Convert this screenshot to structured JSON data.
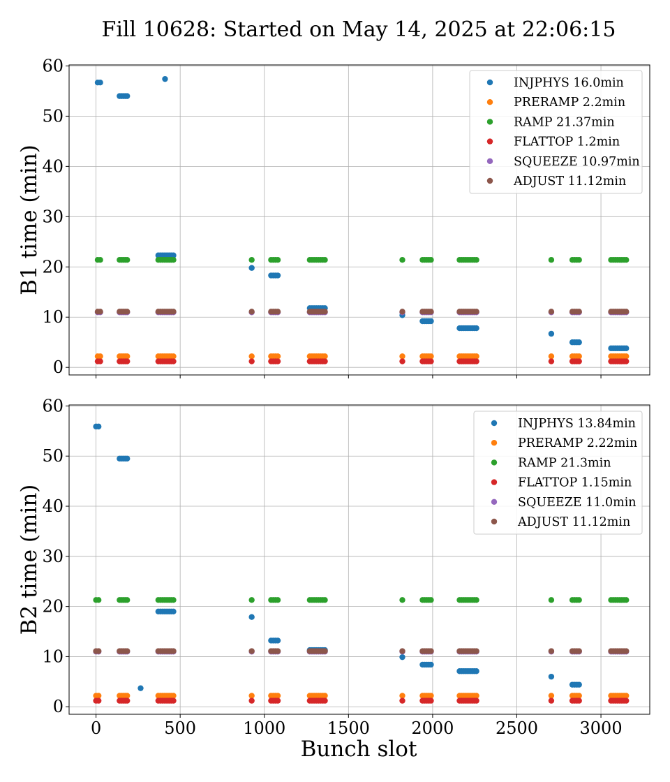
{
  "chart_data": {
    "title": "Fill 10628: Started on May 14, 2025 at 22:06:15",
    "xlabel": "Bunch slot",
    "type": "scatter",
    "grid": true,
    "legend_position": "top-right",
    "x_ticks": [
      0,
      500,
      1000,
      1500,
      2000,
      2500,
      3000
    ],
    "y_ticks": [
      0,
      10,
      20,
      30,
      40,
      50,
      60
    ],
    "xlim": [
      -160,
      3290
    ],
    "colors": {
      "INJPHYS": "#1f77b4",
      "PRERAMP": "#ff7f0e",
      "RAMP": "#2ca02c",
      "FLATTOP": "#d62728",
      "SQUEEZE": "#9467bd",
      "ADJUST": "#8c564b"
    },
    "panels": [
      {
        "ylabel": "B1 time (min)",
        "ylim": [
          -1.5,
          60.2
        ],
        "legend": [
          {
            "phase": "INJPHYS",
            "label": "INJPHYS 16.0min"
          },
          {
            "phase": "PRERAMP",
            "label": "PRERAMP 2.2min"
          },
          {
            "phase": "RAMP",
            "label": "RAMP 21.37min"
          },
          {
            "phase": "FLATTOP",
            "label": "FLATTOP 1.2min"
          },
          {
            "phase": "SQUEEZE",
            "label": "SQUEEZE 10.97min"
          },
          {
            "phase": "ADJUST",
            "label": "ADJUST 11.12min"
          }
        ],
        "series": [
          {
            "phase": "INJPHYS",
            "groups": [
              [
                10,
                25,
                56.7
              ],
              [
                140,
                185,
                54.0
              ],
              [
                410,
                410,
                57.4
              ],
              [
                370,
                460,
                22.3
              ],
              [
                925,
                925,
                19.8
              ],
              [
                1040,
                1080,
                18.3
              ],
              [
                1270,
                1360,
                11.8
              ],
              [
                1820,
                1820,
                10.4
              ],
              [
                1940,
                1990,
                9.2
              ],
              [
                2160,
                2260,
                7.8
              ],
              [
                2705,
                2705,
                6.7
              ],
              [
                2830,
                2870,
                5.0
              ],
              [
                3060,
                3150,
                3.8
              ]
            ]
          },
          {
            "phase": "PRERAMP",
            "groups": [
              [
                10,
                25,
                2.2
              ],
              [
                140,
                185,
                2.2
              ],
              [
                370,
                460,
                2.2
              ],
              [
                925,
                925,
                2.2
              ],
              [
                1040,
                1080,
                2.2
              ],
              [
                1270,
                1360,
                2.2
              ],
              [
                1820,
                1820,
                2.2
              ],
              [
                1940,
                1990,
                2.2
              ],
              [
                2160,
                2260,
                2.2
              ],
              [
                2705,
                2705,
                2.2
              ],
              [
                2830,
                2870,
                2.2
              ],
              [
                3060,
                3150,
                2.2
              ]
            ]
          },
          {
            "phase": "RAMP",
            "groups": [
              [
                10,
                25,
                21.4
              ],
              [
                140,
                185,
                21.4
              ],
              [
                370,
                460,
                21.4
              ],
              [
                925,
                925,
                21.4
              ],
              [
                1040,
                1080,
                21.4
              ],
              [
                1270,
                1360,
                21.4
              ],
              [
                1820,
                1820,
                21.4
              ],
              [
                1940,
                1990,
                21.4
              ],
              [
                2160,
                2260,
                21.4
              ],
              [
                2705,
                2705,
                21.4
              ],
              [
                2830,
                2870,
                21.4
              ],
              [
                3060,
                3150,
                21.4
              ]
            ]
          },
          {
            "phase": "FLATTOP",
            "groups": [
              [
                10,
                25,
                1.2
              ],
              [
                140,
                185,
                1.2
              ],
              [
                370,
                460,
                1.2
              ],
              [
                925,
                925,
                1.2
              ],
              [
                1040,
                1080,
                1.2
              ],
              [
                1270,
                1360,
                1.2
              ],
              [
                1820,
                1820,
                1.2
              ],
              [
                1940,
                1990,
                1.2
              ],
              [
                2160,
                2260,
                1.2
              ],
              [
                2705,
                2705,
                1.2
              ],
              [
                2830,
                2870,
                1.2
              ],
              [
                3060,
                3150,
                1.2
              ]
            ]
          },
          {
            "phase": "SQUEEZE",
            "groups": [
              [
                10,
                25,
                10.97
              ],
              [
                140,
                185,
                10.97
              ],
              [
                370,
                460,
                10.97
              ],
              [
                925,
                925,
                10.97
              ],
              [
                1040,
                1080,
                10.97
              ],
              [
                1270,
                1360,
                10.97
              ],
              [
                1820,
                1820,
                10.97
              ],
              [
                1940,
                1990,
                10.97
              ],
              [
                2160,
                2260,
                10.97
              ],
              [
                2705,
                2705,
                10.97
              ],
              [
                2830,
                2870,
                10.97
              ],
              [
                3060,
                3150,
                10.97
              ]
            ]
          },
          {
            "phase": "ADJUST",
            "groups": [
              [
                10,
                25,
                11.1
              ],
              [
                140,
                185,
                11.1
              ],
              [
                370,
                460,
                11.1
              ],
              [
                925,
                925,
                11.1
              ],
              [
                1040,
                1080,
                11.1
              ],
              [
                1270,
                1360,
                11.1
              ],
              [
                1820,
                1820,
                11.1
              ],
              [
                1940,
                1990,
                11.1
              ],
              [
                2160,
                2260,
                11.1
              ],
              [
                2705,
                2705,
                11.1
              ],
              [
                2830,
                2870,
                11.1
              ],
              [
                3060,
                3150,
                11.1
              ]
            ]
          }
        ]
      },
      {
        "ylabel": "B2 time (min)",
        "ylim": [
          -1.5,
          60.2
        ],
        "legend": [
          {
            "phase": "INJPHYS",
            "label": "INJPHYS 13.84min"
          },
          {
            "phase": "PRERAMP",
            "label": "PRERAMP 2.22min"
          },
          {
            "phase": "RAMP",
            "label": "RAMP 21.3min"
          },
          {
            "phase": "FLATTOP",
            "label": "FLATTOP 1.15min"
          },
          {
            "phase": "SQUEEZE",
            "label": "SQUEEZE 11.0min"
          },
          {
            "phase": "ADJUST",
            "label": "ADJUST 11.12min"
          }
        ],
        "series": [
          {
            "phase": "INJPHYS",
            "groups": [
              [
                0,
                15,
                55.9
              ],
              [
                140,
                185,
                49.5
              ],
              [
                265,
                265,
                3.7
              ],
              [
                370,
                460,
                19.0
              ],
              [
                925,
                925,
                17.9
              ],
              [
                1040,
                1080,
                13.2
              ],
              [
                1270,
                1360,
                11.3
              ],
              [
                1820,
                1820,
                9.9
              ],
              [
                1940,
                1990,
                8.4
              ],
              [
                2160,
                2260,
                7.1
              ],
              [
                2705,
                2705,
                6.0
              ],
              [
                2830,
                2870,
                4.4
              ]
            ]
          },
          {
            "phase": "PRERAMP",
            "groups": [
              [
                0,
                15,
                2.2
              ],
              [
                140,
                185,
                2.2
              ],
              [
                370,
                460,
                2.2
              ],
              [
                925,
                925,
                2.2
              ],
              [
                1040,
                1080,
                2.2
              ],
              [
                1270,
                1360,
                2.2
              ],
              [
                1820,
                1820,
                2.2
              ],
              [
                1940,
                1990,
                2.2
              ],
              [
                2160,
                2260,
                2.2
              ],
              [
                2705,
                2705,
                2.2
              ],
              [
                2830,
                2870,
                2.2
              ],
              [
                3060,
                3150,
                2.2
              ]
            ]
          },
          {
            "phase": "RAMP",
            "groups": [
              [
                0,
                15,
                21.3
              ],
              [
                140,
                185,
                21.3
              ],
              [
                370,
                460,
                21.3
              ],
              [
                925,
                925,
                21.3
              ],
              [
                1040,
                1080,
                21.3
              ],
              [
                1270,
                1360,
                21.3
              ],
              [
                1820,
                1820,
                21.3
              ],
              [
                1940,
                1990,
                21.3
              ],
              [
                2160,
                2260,
                21.3
              ],
              [
                2705,
                2705,
                21.3
              ],
              [
                2830,
                2870,
                21.3
              ],
              [
                3060,
                3150,
                21.3
              ]
            ]
          },
          {
            "phase": "FLATTOP",
            "groups": [
              [
                0,
                15,
                1.2
              ],
              [
                140,
                185,
                1.2
              ],
              [
                370,
                460,
                1.2
              ],
              [
                925,
                925,
                1.2
              ],
              [
                1040,
                1080,
                1.2
              ],
              [
                1270,
                1360,
                1.2
              ],
              [
                1820,
                1820,
                1.2
              ],
              [
                1940,
                1990,
                1.2
              ],
              [
                2160,
                2260,
                1.2
              ],
              [
                2705,
                2705,
                1.2
              ],
              [
                2830,
                2870,
                1.2
              ],
              [
                3060,
                3150,
                1.2
              ]
            ]
          },
          {
            "phase": "SQUEEZE",
            "groups": [
              [
                0,
                15,
                11.0
              ],
              [
                140,
                185,
                11.0
              ],
              [
                370,
                460,
                11.0
              ],
              [
                925,
                925,
                11.0
              ],
              [
                1040,
                1080,
                11.0
              ],
              [
                1270,
                1360,
                11.0
              ],
              [
                1820,
                1820,
                11.0
              ],
              [
                1940,
                1990,
                11.0
              ],
              [
                2160,
                2260,
                11.0
              ],
              [
                2705,
                2705,
                11.0
              ],
              [
                2830,
                2870,
                11.0
              ],
              [
                3060,
                3150,
                11.0
              ]
            ]
          },
          {
            "phase": "ADJUST",
            "groups": [
              [
                0,
                15,
                11.1
              ],
              [
                140,
                185,
                11.1
              ],
              [
                370,
                460,
                11.1
              ],
              [
                925,
                925,
                11.1
              ],
              [
                1040,
                1080,
                11.1
              ],
              [
                1270,
                1360,
                11.1
              ],
              [
                1820,
                1820,
                11.1
              ],
              [
                1940,
                1990,
                11.1
              ],
              [
                2160,
                2260,
                11.1
              ],
              [
                2705,
                2705,
                11.1
              ],
              [
                2830,
                2870,
                11.1
              ],
              [
                3060,
                3150,
                11.1
              ]
            ]
          }
        ]
      }
    ]
  }
}
